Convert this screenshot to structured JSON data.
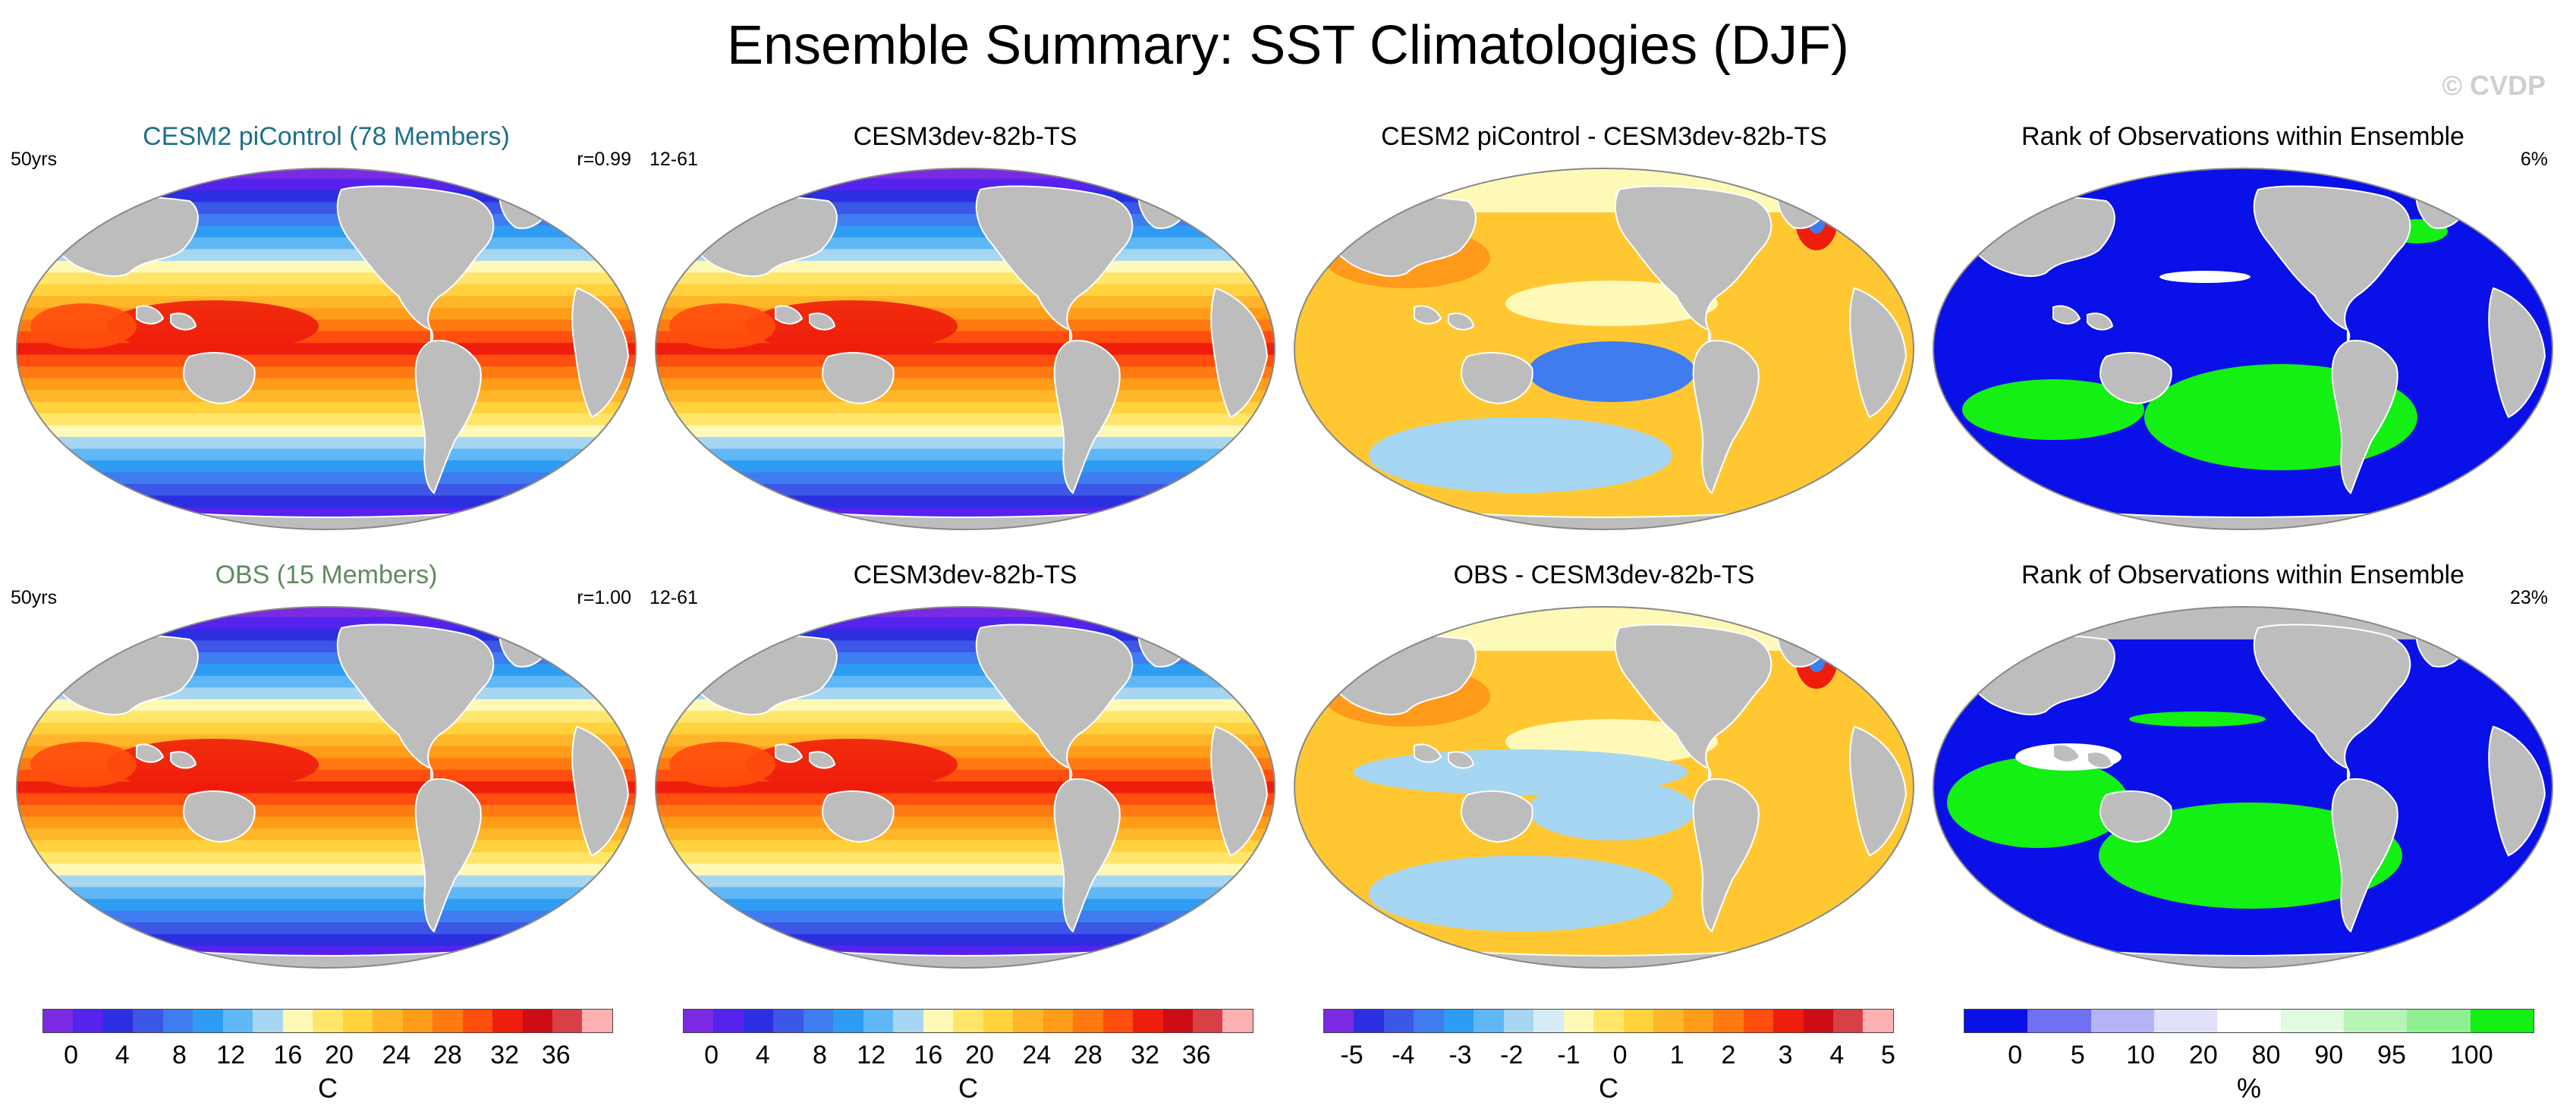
{
  "title": "Ensemble Summary: SST Climatologies (DJF)",
  "watermark": "© CVDP",
  "chart_data": [
    {
      "type": "heatmap",
      "title": "CESM2 piControl (78 Members)",
      "title_color": "#1f6f8b",
      "left_label": "50yrs",
      "right_label": "r=0.99",
      "variable": "SST",
      "season": "DJF",
      "units": "C",
      "range": [
        0,
        36
      ]
    },
    {
      "type": "heatmap",
      "title": "CESM3dev-82b-TS",
      "left_label": "12-61",
      "right_label": "",
      "variable": "SST",
      "season": "DJF",
      "units": "C",
      "range": [
        0,
        36
      ]
    },
    {
      "type": "heatmap",
      "title": "CESM2 piControl - CESM3dev-82b-TS",
      "left_label": "",
      "right_label": "",
      "variable": "SST difference",
      "units": "C",
      "range": [
        -5,
        5
      ]
    },
    {
      "type": "heatmap",
      "title": "Rank of Observations within Ensemble",
      "left_label": "",
      "right_label": "6%",
      "variable": "rank",
      "units": "%",
      "range": [
        0,
        100
      ]
    },
    {
      "type": "heatmap",
      "title": "OBS (15 Members)",
      "title_color": "#5f8a5f",
      "left_label": "50yrs",
      "right_label": "r=1.00",
      "variable": "SST",
      "season": "DJF",
      "units": "C",
      "range": [
        0,
        36
      ]
    },
    {
      "type": "heatmap",
      "title": "CESM3dev-82b-TS",
      "left_label": "12-61",
      "right_label": "",
      "variable": "SST",
      "season": "DJF",
      "units": "C",
      "range": [
        0,
        36
      ]
    },
    {
      "type": "heatmap",
      "title": "OBS - CESM3dev-82b-TS",
      "left_label": "",
      "right_label": "",
      "variable": "SST difference",
      "units": "C",
      "range": [
        -5,
        5
      ]
    },
    {
      "type": "heatmap",
      "title": "Rank of Observations within Ensemble",
      "left_label": "",
      "right_label": "23%",
      "variable": "rank",
      "units": "%",
      "range": [
        0,
        100
      ]
    }
  ],
  "colorbars": [
    {
      "units": "C",
      "labels": [
        "0",
        "4",
        "8",
        "12",
        "16",
        "20",
        "24",
        "28",
        "32",
        "36"
      ],
      "colors": [
        "#7a2be2",
        "#5522ee",
        "#2b2fe0",
        "#3c56e6",
        "#3f7cf0",
        "#2e9cf2",
        "#5fb7f5",
        "#a6d6f2",
        "#fff9b8",
        "#ffe66a",
        "#ffd23e",
        "#ffb62a",
        "#ff9c18",
        "#ff7a12",
        "#ff4e0d",
        "#ee1d0c",
        "#cc0c16",
        "#d84048",
        "#ffb0b0"
      ]
    },
    {
      "units": "C",
      "labels": [
        "0",
        "4",
        "8",
        "12",
        "16",
        "20",
        "24",
        "28",
        "32",
        "36"
      ],
      "colors": [
        "#7a2be2",
        "#5522ee",
        "#2b2fe0",
        "#3c56e6",
        "#3f7cf0",
        "#2e9cf2",
        "#5fb7f5",
        "#a6d6f2",
        "#fff9b8",
        "#ffe66a",
        "#ffd23e",
        "#ffb62a",
        "#ff9c18",
        "#ff7a12",
        "#ff4e0d",
        "#ee1d0c",
        "#cc0c16",
        "#d84048",
        "#ffb0b0"
      ]
    },
    {
      "units": "C",
      "labels": [
        "-5",
        "-4",
        "-3",
        "-2",
        "-1",
        "0",
        "1",
        "2",
        "3",
        "4",
        "5"
      ],
      "colors": [
        "#7a2be2",
        "#2b2fe0",
        "#3c56e6",
        "#3f7cf0",
        "#2e9cf2",
        "#5fb7f5",
        "#a6d6f2",
        "#d5ecf7",
        "#fff9b8",
        "#ffe66a",
        "#ffd23e",
        "#ffb62a",
        "#ff9c18",
        "#ff7a12",
        "#ff4e0d",
        "#ee1d0c",
        "#cc0c16",
        "#d84048",
        "#ffb0b0"
      ]
    },
    {
      "units": "%",
      "labels": [
        "0",
        "5",
        "10",
        "20",
        "80",
        "90",
        "95",
        "100"
      ],
      "colors": [
        "#0a10e8",
        "#6f70f2",
        "#b3b3f7",
        "#e0e0fb",
        "#ffffff",
        "#e0fbe0",
        "#b6f5b6",
        "#8ff08f",
        "#14ef14"
      ]
    }
  ],
  "land_color": "#bdbdbd",
  "diff_colors": {
    "warm": "#ffc832",
    "warmer": "#ff9a1a",
    "cool": "#a6d6f2",
    "cold": "#3f7cf0",
    "neutral": "#fff9b8"
  }
}
